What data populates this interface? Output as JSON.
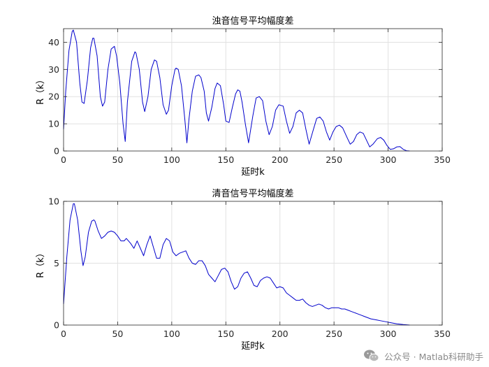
{
  "watermark": {
    "text": "公众号 · Matlab科研助手",
    "icon": "wechat-icon"
  },
  "style": {
    "line_color": "#0000cc",
    "grid_color": "#e1e1e1",
    "axis_color": "#262626"
  },
  "chart_data": [
    {
      "type": "line",
      "title": "浊音信号平均幅度差",
      "xlabel": "延时k",
      "ylabel": "R（k）",
      "xlim": [
        0,
        350
      ],
      "ylim": [
        0,
        45
      ],
      "xticks": [
        0,
        50,
        100,
        150,
        200,
        250,
        300,
        350
      ],
      "yticks": [
        0,
        10,
        20,
        30,
        40
      ],
      "grid": true,
      "series": [
        {
          "name": "R(k)",
          "x": [
            0,
            2,
            5,
            8,
            9,
            12,
            15,
            17,
            19,
            22,
            25,
            27,
            28,
            31,
            34,
            36,
            38,
            41,
            44,
            47,
            49,
            52,
            55,
            57,
            59,
            63,
            66,
            67,
            70,
            73,
            75,
            78,
            81,
            84,
            86,
            89,
            92,
            95,
            97,
            100,
            103,
            104,
            106,
            109,
            112,
            114,
            116,
            119,
            122,
            125,
            127,
            130,
            132,
            134,
            137,
            140,
            142,
            145,
            148,
            150,
            153,
            156,
            159,
            161,
            163,
            165,
            168,
            171,
            175,
            178,
            181,
            184,
            187,
            190,
            193,
            196,
            199,
            203,
            206,
            209,
            212,
            215,
            218,
            221,
            224,
            227,
            231,
            234,
            237,
            240,
            243,
            246,
            249,
            252,
            255,
            258,
            262,
            265,
            268,
            271,
            274,
            277,
            280,
            283,
            286,
            290,
            293,
            296,
            299,
            302,
            305,
            308,
            311,
            314,
            317,
            320
          ],
          "values": [
            8,
            22,
            37,
            44,
            44.5,
            40,
            25,
            18,
            17.5,
            26,
            38,
            41.5,
            41.5,
            35,
            20,
            16.5,
            18,
            30,
            37.5,
            38.5,
            35,
            25,
            10,
            3.5,
            18,
            33,
            36.5,
            36,
            30,
            18,
            14.5,
            20,
            30,
            33.5,
            33,
            27,
            17,
            13.5,
            15,
            24,
            30,
            30.5,
            30,
            24,
            12,
            3,
            12,
            22,
            27.5,
            28,
            27,
            22,
            14,
            11,
            16,
            23,
            25,
            24,
            17,
            11,
            10.5,
            16,
            21,
            22.5,
            22,
            18,
            10,
            3,
            13,
            19.5,
            20,
            18.5,
            11,
            6,
            9,
            15,
            17,
            16.5,
            11,
            6.5,
            9,
            14,
            15,
            14,
            8,
            2.5,
            8,
            12,
            12.5,
            11,
            7,
            4,
            7,
            9,
            9.5,
            8.5,
            5,
            2.5,
            3.5,
            6,
            7,
            6.5,
            4,
            1.5,
            2.5,
            4.5,
            5,
            4,
            2,
            0.6,
            0.8,
            1.5,
            1.6,
            0.6,
            0.1,
            0
          ]
        }
      ]
    },
    {
      "type": "line",
      "title": "清音信号平均幅度差",
      "xlabel": "延时k",
      "ylabel": "R（k）",
      "xlim": [
        0,
        350
      ],
      "ylim": [
        0,
        10
      ],
      "xticks": [
        0,
        50,
        100,
        150,
        200,
        250,
        300,
        350
      ],
      "yticks": [
        0,
        5,
        10
      ],
      "grid": true,
      "series": [
        {
          "name": "R(k)",
          "x": [
            0,
            3,
            6,
            9,
            10,
            13,
            16,
            18,
            20,
            23,
            26,
            28,
            29,
            32,
            35,
            38,
            41,
            44,
            47,
            50,
            53,
            56,
            58,
            62,
            65,
            68,
            71,
            74,
            77,
            80,
            83,
            86,
            89,
            92,
            95,
            98,
            101,
            104,
            107,
            110,
            113,
            116,
            119,
            122,
            125,
            128,
            131,
            134,
            137,
            140,
            143,
            146,
            149,
            152,
            155,
            158,
            161,
            164,
            167,
            170,
            173,
            176,
            179,
            182,
            185,
            188,
            191,
            194,
            197,
            200,
            203,
            206,
            209,
            212,
            215,
            218,
            221,
            224,
            227,
            230,
            233,
            236,
            239,
            242,
            245,
            248,
            251,
            254,
            257,
            260,
            263,
            266,
            269,
            272,
            275,
            278,
            281,
            284,
            287,
            290,
            293,
            296,
            299,
            302,
            305,
            308,
            311,
            314,
            317,
            320
          ],
          "values": [
            1.7,
            5.5,
            8.5,
            9.8,
            9.8,
            8.5,
            6.0,
            4.8,
            5.5,
            7.5,
            8.4,
            8.5,
            8.4,
            7.6,
            7.0,
            7.2,
            7.5,
            7.6,
            7.5,
            7.2,
            6.8,
            6.8,
            7.0,
            6.6,
            6.2,
            6.8,
            6.2,
            5.6,
            6.5,
            7.2,
            6.3,
            5.4,
            5.4,
            6.5,
            7.0,
            6.8,
            5.9,
            5.6,
            5.8,
            5.9,
            6.0,
            5.4,
            5.0,
            4.9,
            5.2,
            5.2,
            4.8,
            4.1,
            3.8,
            3.5,
            4.0,
            4.5,
            4.6,
            4.3,
            3.5,
            2.9,
            3.1,
            3.8,
            4.2,
            4.3,
            3.8,
            3.2,
            3.1,
            3.6,
            3.8,
            3.9,
            3.8,
            3.4,
            3.0,
            3.1,
            3.0,
            2.6,
            2.4,
            2.2,
            2.0,
            2.0,
            2.1,
            1.8,
            1.6,
            1.5,
            1.6,
            1.7,
            1.6,
            1.4,
            1.3,
            1.4,
            1.4,
            1.4,
            1.3,
            1.3,
            1.2,
            1.1,
            1.0,
            0.9,
            0.8,
            0.7,
            0.6,
            0.5,
            0.45,
            0.4,
            0.35,
            0.3,
            0.25,
            0.2,
            0.15,
            0.1,
            0.07,
            0.04,
            0.02,
            0
          ]
        }
      ]
    }
  ]
}
